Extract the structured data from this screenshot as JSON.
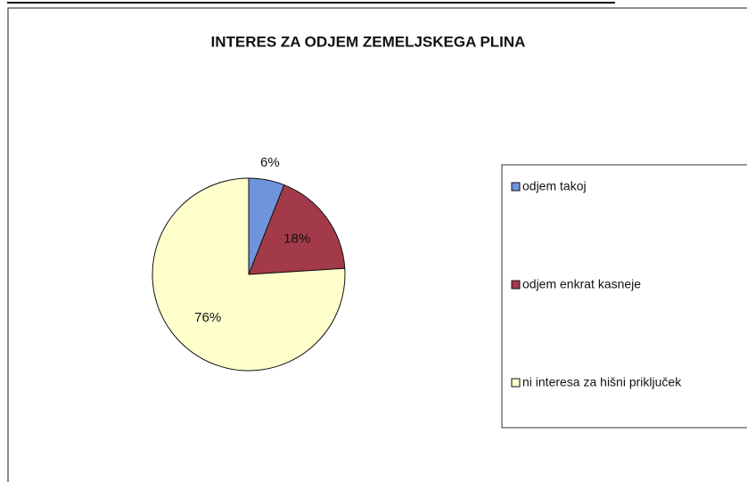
{
  "chart_data": {
    "type": "pie",
    "title": "INTERES ZA ODJEM ZEMELJSKEGA PLINA",
    "categories": [
      "odjem takoj",
      "odjem enkrat kasneje",
      "ni interesa za hišni priključek"
    ],
    "values": [
      6,
      18,
      76
    ],
    "value_labels": [
      "6%",
      "18%",
      "76%"
    ],
    "colors": [
      "#7094dc",
      "#a33a4a",
      "#ffffcc"
    ],
    "legend": "right"
  }
}
